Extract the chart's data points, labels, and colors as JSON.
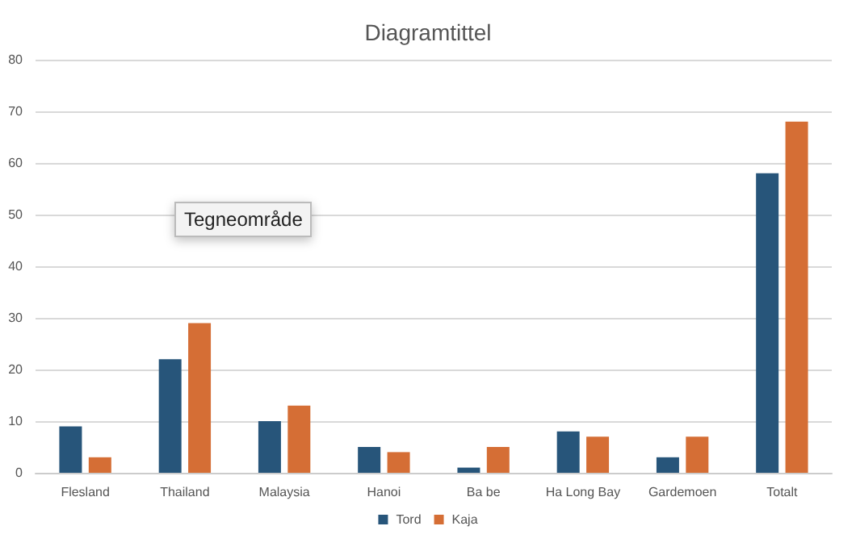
{
  "chart_data": {
    "type": "bar",
    "title": "Diagramtittel",
    "categories": [
      "Flesland",
      "Thailand",
      "Malaysia",
      "Hanoi",
      "Ba be",
      "Ha Long Bay",
      "Gardemoen",
      "Totalt"
    ],
    "series": [
      {
        "name": "Tord",
        "color": "#27557a",
        "values": [
          9,
          22,
          10,
          5,
          1,
          8,
          3,
          58
        ]
      },
      {
        "name": "Kaja",
        "color": "#d56e35",
        "values": [
          3,
          29,
          13,
          4,
          5,
          7,
          7,
          68
        ]
      }
    ],
    "ylim": [
      0,
      80
    ],
    "yticks": [
      0,
      10,
      20,
      30,
      40,
      50,
      60,
      70,
      80
    ],
    "grid": "y",
    "legend": "bottom",
    "annotations": [
      "Tegneområde"
    ]
  }
}
